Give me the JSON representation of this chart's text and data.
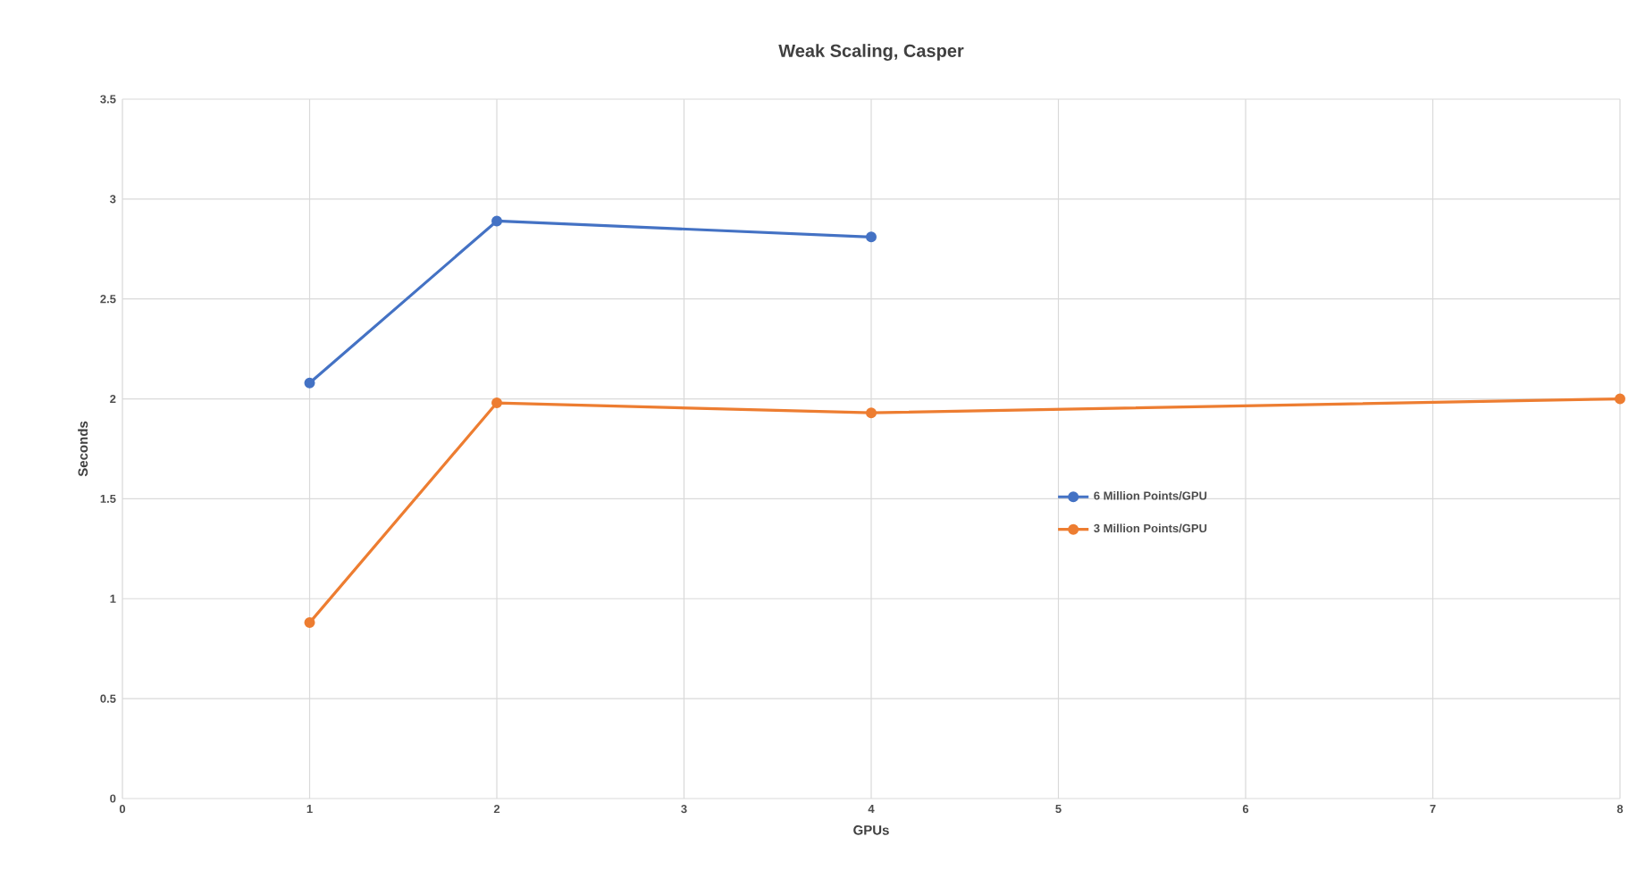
{
  "chart_data": {
    "type": "line",
    "title": "Weak Scaling, Casper",
    "xlabel": "GPUs",
    "ylabel": "Seconds",
    "series": [
      {
        "name": "6 Million Points/GPU",
        "color": "#4472c4",
        "x": [
          1,
          2,
          4
        ],
        "values": [
          2.08,
          2.89,
          2.81
        ]
      },
      {
        "name": "3 Million Points/GPU",
        "color": "#ed7d31",
        "x": [
          1,
          2,
          4,
          8
        ],
        "values": [
          0.88,
          1.98,
          1.93,
          2.0
        ]
      }
    ],
    "xlim": [
      0,
      8
    ],
    "xticks": [
      0,
      1,
      2,
      3,
      4,
      5,
      6,
      7,
      8
    ],
    "ylim": [
      0,
      3.5
    ],
    "yticks": [
      0,
      0.5,
      1,
      1.5,
      2,
      2.5,
      3,
      3.5
    ],
    "grid": true,
    "legend": "right",
    "marker": "circle",
    "line_style": "solid"
  }
}
